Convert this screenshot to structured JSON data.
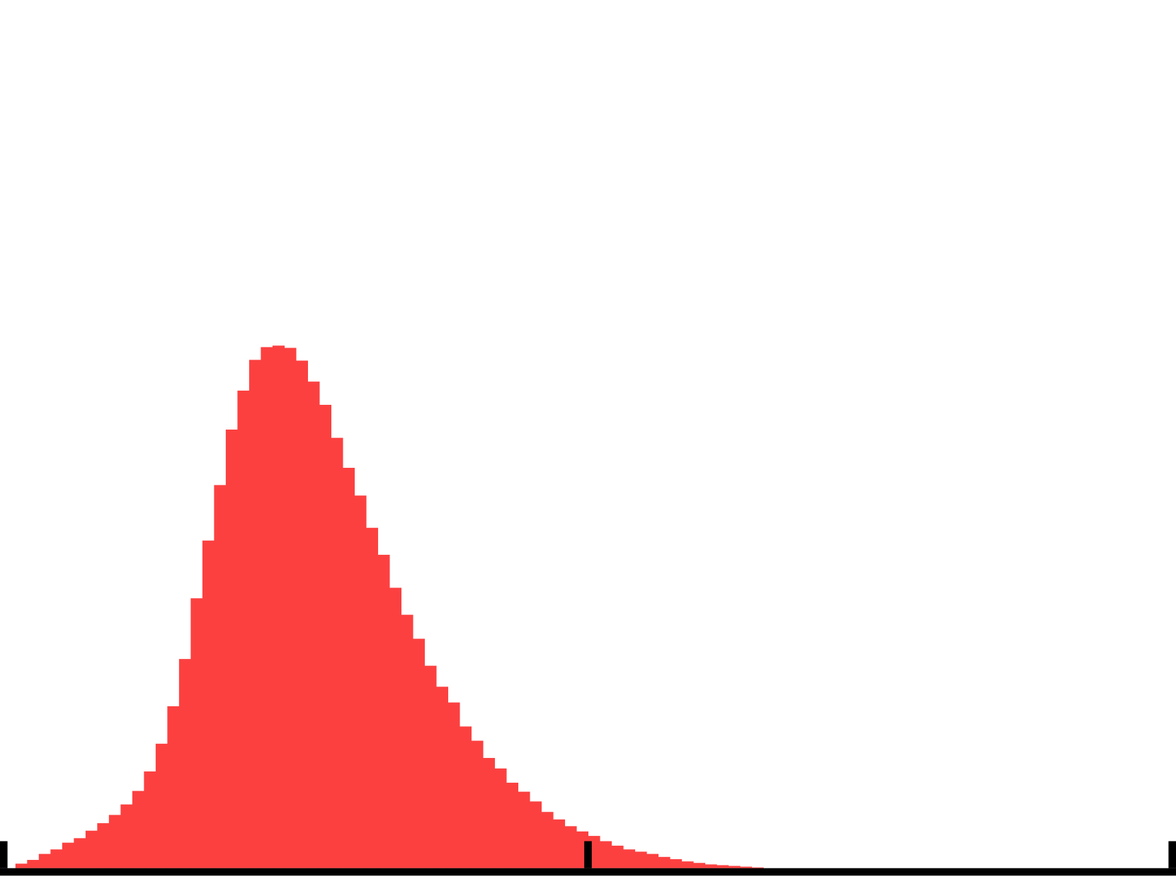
{
  "chart_data": {
    "type": "histogram",
    "color": "#fc4040",
    "bins": [
      1,
      2,
      3,
      4,
      5,
      6,
      7,
      8,
      9,
      10,
      11,
      12,
      13,
      14,
      15,
      16,
      17,
      18,
      19,
      20,
      21,
      22,
      23,
      24,
      25,
      26,
      27,
      28,
      29,
      30,
      31,
      32,
      33,
      34,
      35,
      36,
      37,
      38,
      39,
      40,
      41,
      42,
      43,
      44,
      45,
      46,
      47,
      48,
      49,
      50,
      51,
      52,
      53,
      54,
      55,
      56,
      57,
      58,
      59,
      60,
      61,
      62,
      63,
      64,
      65
    ],
    "counts": [
      6,
      11,
      19,
      25,
      34,
      40,
      50,
      60,
      71,
      85,
      103,
      129,
      166,
      216,
      279,
      360,
      437,
      511,
      585,
      637,
      678,
      695,
      697,
      694,
      677,
      649,
      618,
      574,
      534,
      497,
      454,
      418,
      374,
      338,
      306,
      270,
      242,
      221,
      189,
      170,
      147,
      133,
      114,
      102,
      89,
      75,
      65,
      56,
      49,
      43,
      36,
      30,
      25,
      22,
      19,
      15,
      12,
      9,
      7,
      5,
      4,
      3,
      2,
      1
    ],
    "xlim": [
      0,
      100
    ],
    "xticks": [
      0,
      50,
      100
    ],
    "ylim": [
      0,
      1158
    ]
  }
}
